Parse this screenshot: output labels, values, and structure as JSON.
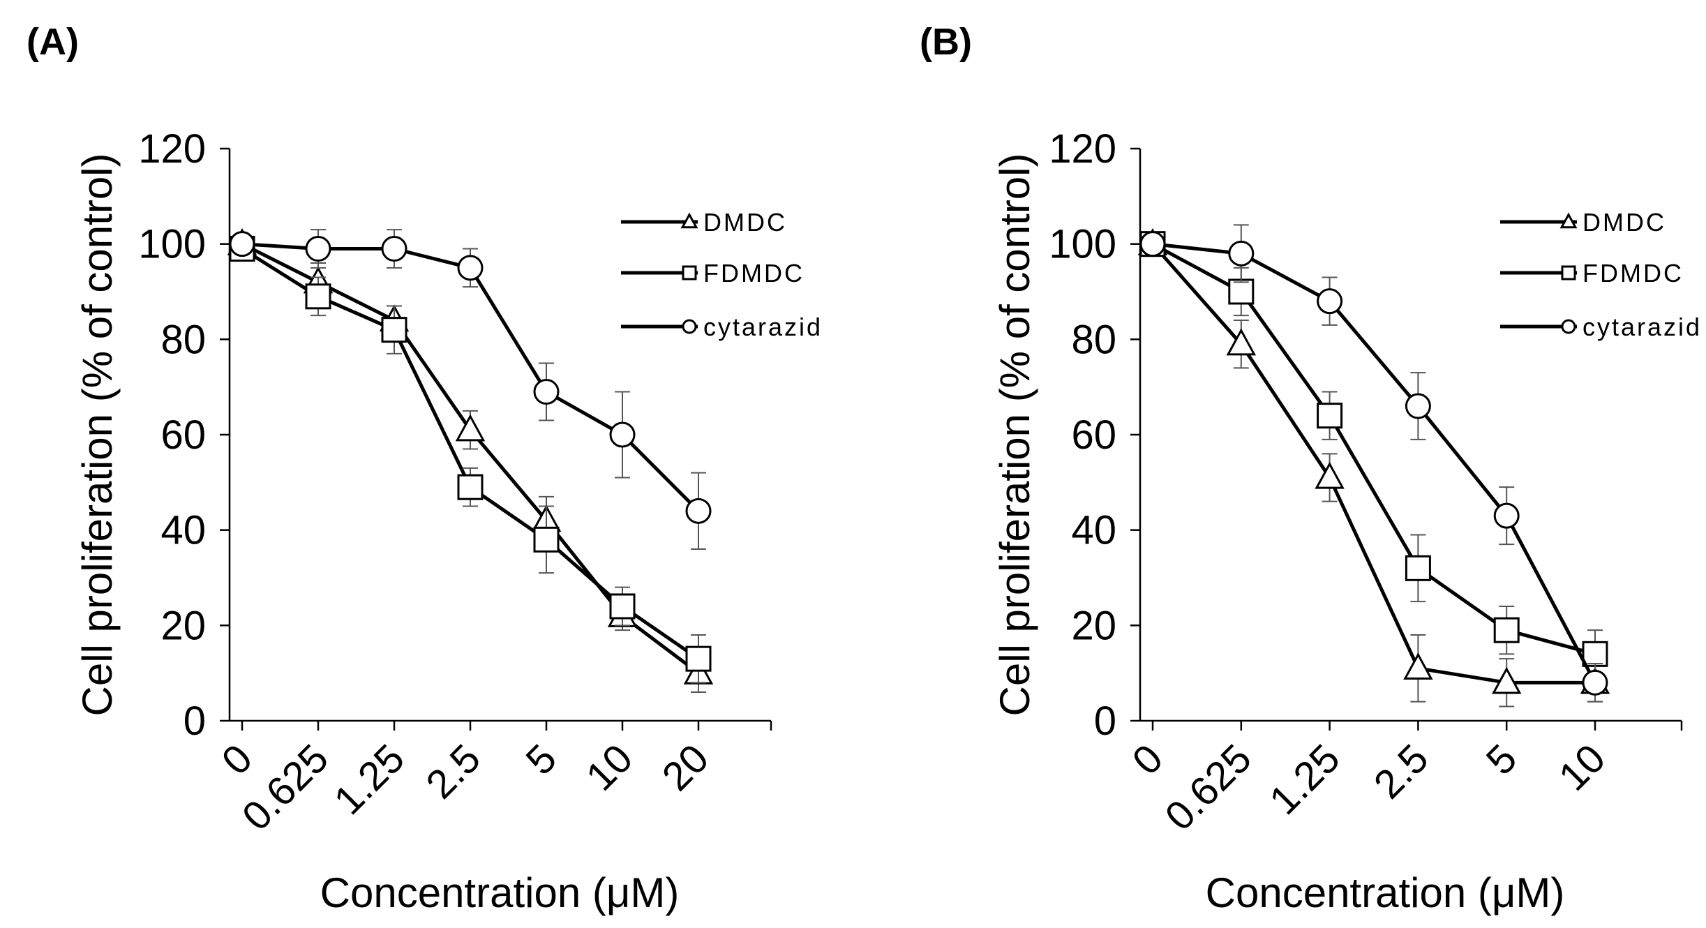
{
  "chart_data": [
    {
      "panel_label": "(A)",
      "type": "line",
      "categories": [
        "0",
        "0.625",
        "1.25",
        "2.5",
        "5",
        "10",
        "20"
      ],
      "xlabel": "Concentration (μM)",
      "ylabel": "Cell proliferation (% of control)",
      "ylim": [
        0,
        120
      ],
      "yticks": [
        "0",
        "20",
        "40",
        "60",
        "80",
        "100",
        "120"
      ],
      "legend_position": "top-right",
      "series": [
        {
          "name": "DMDC",
          "marker": "triangle",
          "values": [
            100,
            92,
            84,
            61,
            42,
            22,
            10
          ],
          "errors": [
            2,
            4,
            3,
            4,
            5,
            3,
            4
          ]
        },
        {
          "name": "FDMDC",
          "marker": "square",
          "values": [
            99,
            89,
            82,
            49,
            38,
            24,
            13
          ],
          "errors": [
            2,
            4,
            5,
            4,
            7,
            4,
            5
          ]
        },
        {
          "name": "cytarazid",
          "marker": "circle",
          "values": [
            100,
            99,
            99,
            95,
            69,
            60,
            44
          ],
          "errors": [
            2,
            4,
            4,
            4,
            6,
            9,
            8
          ]
        }
      ]
    },
    {
      "panel_label": "(B)",
      "type": "line",
      "categories": [
        "0",
        "0.625",
        "1.25",
        "2.5",
        "5",
        "10"
      ],
      "xlabel": "Concentration (μM)",
      "ylabel": "Cell proliferation (% of control)",
      "ylim": [
        0,
        120
      ],
      "yticks": [
        "0",
        "20",
        "40",
        "60",
        "80",
        "100",
        "120"
      ],
      "legend_position": "top-right",
      "series": [
        {
          "name": "DMDC",
          "marker": "triangle",
          "values": [
            100,
            79,
            51,
            11,
            8,
            8
          ],
          "errors": [
            2,
            5,
            5,
            7,
            5,
            4
          ]
        },
        {
          "name": "FDMDC",
          "marker": "square",
          "values": [
            100,
            90,
            64,
            32,
            19,
            14
          ],
          "errors": [
            2,
            5,
            5,
            7,
            5,
            5
          ]
        },
        {
          "name": "cytarazid",
          "marker": "circle",
          "values": [
            100,
            98,
            88,
            66,
            43,
            8
          ],
          "errors": [
            2,
            6,
            5,
            7,
            6,
            4
          ]
        }
      ]
    }
  ]
}
